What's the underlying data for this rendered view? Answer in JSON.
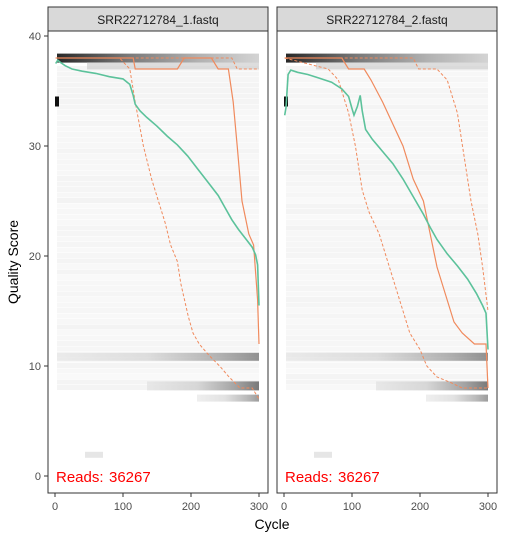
{
  "chart_data": {
    "type": "quality-profile",
    "xlabel": "Cycle",
    "ylabel": "Quality Score",
    "xlim": [
      0,
      300
    ],
    "ylim": [
      0,
      40
    ],
    "x_ticks": [
      0,
      100,
      200,
      300
    ],
    "y_ticks": [
      0,
      10,
      20,
      30,
      40
    ],
    "grid": false,
    "colors": {
      "mean": "#5cc29b",
      "quartile": "#f08a5d",
      "median_band": "#2b1d16",
      "reads_label": "#ff0000",
      "strip": "#d9d9d9"
    },
    "panels": [
      {
        "title": "SRR22712784_1.fastq",
        "reads_label": "Reads:",
        "reads_count": "36267",
        "mean": [
          [
            1,
            37.5
          ],
          [
            4,
            37.8
          ],
          [
            8,
            37.6
          ],
          [
            15,
            37.3
          ],
          [
            25,
            37.0
          ],
          [
            40,
            36.8
          ],
          [
            60,
            36.6
          ],
          [
            80,
            36.3
          ],
          [
            100,
            36.1
          ],
          [
            110,
            35.6
          ],
          [
            115,
            34.6
          ],
          [
            118,
            33.8
          ],
          [
            125,
            33.2
          ],
          [
            135,
            32.6
          ],
          [
            150,
            31.8
          ],
          [
            165,
            30.9
          ],
          [
            180,
            30.1
          ],
          [
            195,
            29.1
          ],
          [
            210,
            27.9
          ],
          [
            225,
            26.7
          ],
          [
            240,
            25.5
          ],
          [
            250,
            24.4
          ],
          [
            260,
            23.3
          ],
          [
            270,
            22.4
          ],
          [
            280,
            21.6
          ],
          [
            290,
            20.8
          ],
          [
            295,
            20.1
          ],
          [
            298,
            19.2
          ],
          [
            300,
            15.5
          ]
        ],
        "median": [
          [
            1,
            38
          ],
          [
            115,
            38
          ],
          [
            118,
            37
          ],
          [
            180,
            37
          ],
          [
            190,
            38
          ],
          [
            230,
            38
          ],
          [
            240,
            37
          ],
          [
            255,
            37
          ],
          [
            262,
            34
          ],
          [
            268,
            30
          ],
          [
            275,
            25
          ],
          [
            285,
            22
          ],
          [
            292,
            21
          ],
          [
            298,
            16
          ],
          [
            300,
            12
          ]
        ],
        "q25": [
          [
            1,
            38
          ],
          [
            95,
            38
          ],
          [
            110,
            37
          ],
          [
            118,
            34
          ],
          [
            130,
            30
          ],
          [
            142,
            27
          ],
          [
            152,
            25
          ],
          [
            162,
            23
          ],
          [
            170,
            21
          ],
          [
            180,
            19.5
          ],
          [
            185,
            17.5
          ],
          [
            196,
            14.5
          ],
          [
            203,
            13
          ],
          [
            212,
            12
          ],
          [
            226,
            11
          ],
          [
            242,
            10
          ],
          [
            256,
            9
          ],
          [
            272,
            8
          ],
          [
            290,
            8
          ],
          [
            300,
            7
          ]
        ],
        "q75": [
          [
            1,
            38
          ],
          [
            260,
            38
          ],
          [
            268,
            37
          ],
          [
            300,
            37
          ]
        ]
      },
      {
        "title": "SRR22712784_2.fastq",
        "reads_label": "Reads:",
        "reads_count": "36267",
        "mean": [
          [
            1,
            32.8
          ],
          [
            3,
            33.5
          ],
          [
            6,
            36.5
          ],
          [
            10,
            36.9
          ],
          [
            20,
            36.7
          ],
          [
            35,
            36.5
          ],
          [
            50,
            36.2
          ],
          [
            70,
            35.8
          ],
          [
            85,
            35.2
          ],
          [
            95,
            34.5
          ],
          [
            100,
            33.4
          ],
          [
            103,
            32.8
          ],
          [
            108,
            33.6
          ],
          [
            112,
            34.6
          ],
          [
            115,
            33.2
          ],
          [
            120,
            31.5
          ],
          [
            130,
            30.6
          ],
          [
            145,
            29.5
          ],
          [
            160,
            28.4
          ],
          [
            175,
            27.0
          ],
          [
            190,
            25.4
          ],
          [
            205,
            23.8
          ],
          [
            215,
            22.6
          ],
          [
            225,
            21.5
          ],
          [
            240,
            20.2
          ],
          [
            255,
            19.1
          ],
          [
            270,
            17.9
          ],
          [
            283,
            16.6
          ],
          [
            292,
            15.5
          ],
          [
            297,
            14.8
          ],
          [
            300,
            11.5
          ]
        ],
        "median": [
          [
            1,
            38
          ],
          [
            85,
            38
          ],
          [
            95,
            37
          ],
          [
            112,
            37
          ],
          [
            118,
            37
          ],
          [
            128,
            36
          ],
          [
            145,
            34
          ],
          [
            160,
            32
          ],
          [
            175,
            30
          ],
          [
            190,
            27
          ],
          [
            205,
            25
          ],
          [
            215,
            22
          ],
          [
            225,
            19
          ],
          [
            240,
            16
          ],
          [
            250,
            14
          ],
          [
            262,
            13
          ],
          [
            280,
            12
          ],
          [
            297,
            12
          ],
          [
            300,
            8
          ]
        ],
        "q25": [
          [
            1,
            38
          ],
          [
            65,
            37
          ],
          [
            80,
            36
          ],
          [
            95,
            33
          ],
          [
            105,
            30
          ],
          [
            115,
            26
          ],
          [
            125,
            24
          ],
          [
            140,
            22
          ],
          [
            155,
            19
          ],
          [
            165,
            17
          ],
          [
            175,
            15
          ],
          [
            185,
            13
          ],
          [
            200,
            11.5
          ],
          [
            210,
            10
          ],
          [
            225,
            9
          ],
          [
            245,
            8.5
          ],
          [
            262,
            8
          ],
          [
            280,
            8
          ],
          [
            300,
            8
          ]
        ],
        "q75": [
          [
            1,
            38
          ],
          [
            190,
            38
          ],
          [
            198,
            37
          ],
          [
            225,
            37
          ],
          [
            240,
            36
          ],
          [
            255,
            33
          ],
          [
            265,
            29
          ],
          [
            275,
            25
          ],
          [
            285,
            22
          ],
          [
            292,
            19
          ],
          [
            300,
            15
          ]
        ]
      }
    ]
  }
}
